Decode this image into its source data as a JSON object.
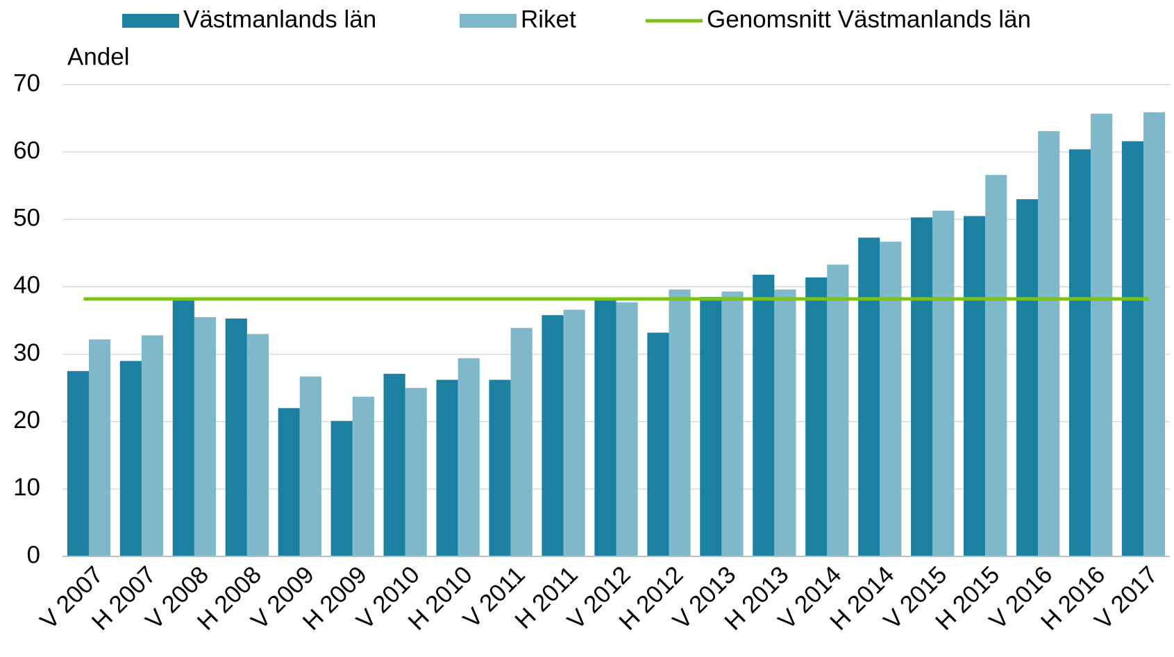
{
  "chart_data": {
    "type": "bar",
    "y_label": "Andel",
    "categories": [
      "V 2007",
      "H 2007",
      "V 2008",
      "H 2008",
      "V 2009",
      "H 2009",
      "V 2010",
      "H 2010",
      "V 2011",
      "H 2011",
      "V 2012",
      "H 2012",
      "V 2013",
      "H 2013",
      "V 2014",
      "H 2014",
      "V 2015",
      "H 2015",
      "V 2016",
      "H 2016",
      "V 2017"
    ],
    "series": [
      {
        "name": "Västmanlands län",
        "color": "#1c80a0",
        "values": [
          27.5,
          29,
          38.3,
          35.3,
          22,
          20.1,
          27.1,
          26.2,
          26.2,
          35.8,
          38.3,
          33.2,
          38.5,
          41.8,
          41.4,
          47.3,
          50.3,
          50.5,
          53,
          60.4,
          61.6
        ]
      },
      {
        "name": "Riket",
        "color": "#7fb8cb",
        "values": [
          32.2,
          32.8,
          35.5,
          33,
          26.7,
          23.7,
          25,
          29.4,
          33.9,
          36.6,
          37.7,
          39.6,
          39.3,
          39.6,
          43.3,
          46.7,
          51.3,
          56.6,
          63.1,
          65.7,
          65.9
        ]
      }
    ],
    "reference_lines": [
      {
        "name": "Genomsnitt Västmanlands län",
        "color": "#7ec11b",
        "value": 38.2
      }
    ],
    "ylim": [
      0,
      70
    ],
    "yticks": [
      0,
      10,
      20,
      30,
      40,
      50,
      60,
      70
    ],
    "grid": true
  }
}
